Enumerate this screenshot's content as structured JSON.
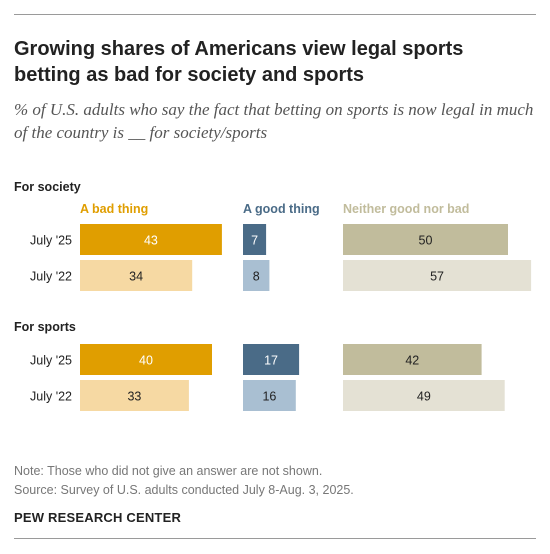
{
  "title": "Growing shares of Americans view legal sports betting as bad for society and sports",
  "subtitle": "% of U.S. adults who say the fact that betting on sports is now legal in much of the country is __ for society/sports",
  "note": "Note: Those who did not give an answer are not shown.",
  "source": "Source: Survey of U.S. adults conducted July 8-Aug. 3, 2025.",
  "brand": "PEW RESEARCH CENTER",
  "colors": {
    "bad_2025": "#e09e00",
    "bad_2022": "#f6d9a3",
    "good_2025": "#4a6b87",
    "good_2022": "#a9bfd2",
    "neither_2025": "#c1bc9c",
    "neither_2022": "#e4e1d4",
    "bad_label": "#e09e00",
    "good_label": "#4a6b87",
    "neither_label": "#c1bc9c"
  },
  "chart_data": {
    "type": "bar",
    "orientation": "horizontal",
    "series_names": [
      "A bad thing",
      "A good thing",
      "Neither good nor bad"
    ],
    "groups": [
      {
        "label": "For society",
        "rows": [
          {
            "label": "July '25",
            "values": [
              43,
              7,
              50
            ]
          },
          {
            "label": "July '22",
            "values": [
              34,
              8,
              57
            ]
          }
        ]
      },
      {
        "label": "For sports",
        "rows": [
          {
            "label": "July '25",
            "values": [
              40,
              17,
              42
            ]
          },
          {
            "label": "July '22",
            "values": [
              33,
              16,
              49
            ]
          }
        ]
      }
    ]
  }
}
